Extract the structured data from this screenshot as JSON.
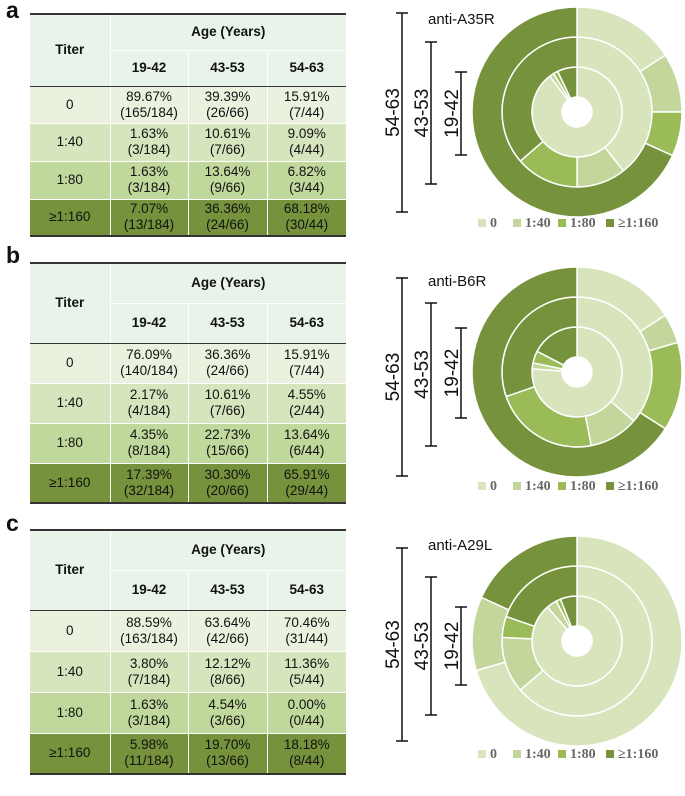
{
  "colors": {
    "c0": "#d8e4bc",
    "c1": "#c3d69b",
    "c2": "#9bbb59",
    "c3": "#76923c"
  },
  "panels": [
    {
      "letter": "a",
      "table": {
        "titer_header": "Titer",
        "age_header": "Age (Years)",
        "age_groups": [
          "19-42",
          "43-53",
          "54-63"
        ],
        "rows": [
          {
            "label": "0",
            "cells": [
              [
                "89.67%",
                "(165/184)"
              ],
              [
                "39.39%",
                "(26/66)"
              ],
              [
                "15.91%",
                "(7/44)"
              ]
            ]
          },
          {
            "label": "1:40",
            "cells": [
              [
                "1.63%",
                "(3/184)"
              ],
              [
                "10.61%",
                "(7/66)"
              ],
              [
                "9.09%",
                "(4/44)"
              ]
            ]
          },
          {
            "label": "1:80",
            "cells": [
              [
                "1.63%",
                "(3/184)"
              ],
              [
                "13.64%",
                "(9/66)"
              ],
              [
                "6.82%",
                "(3/44)"
              ]
            ]
          },
          {
            "label": "≥1:160",
            "cells": [
              [
                "7.07%",
                "(13/184)"
              ],
              [
                "36.36%",
                "(24/66)"
              ],
              [
                "68.18%",
                "(30/44)"
              ]
            ]
          }
        ]
      }
    },
    {
      "letter": "b",
      "table": {
        "titer_header": "Titer",
        "age_header": "Age (Years)",
        "age_groups": [
          "19-42",
          "43-53",
          "54-63"
        ],
        "rows": [
          {
            "label": "0",
            "cells": [
              [
                "76.09%",
                "(140/184)"
              ],
              [
                "36.36%",
                "(24/66)"
              ],
              [
                "15.91%",
                "(7/44)"
              ]
            ]
          },
          {
            "label": "1:40",
            "cells": [
              [
                "2.17%",
                "(4/184)"
              ],
              [
                "10.61%",
                "(7/66)"
              ],
              [
                "4.55%",
                "(2/44)"
              ]
            ]
          },
          {
            "label": "1:80",
            "cells": [
              [
                "4.35%",
                "(8/184)"
              ],
              [
                "22.73%",
                "(15/66)"
              ],
              [
                "13.64%",
                "(6/44)"
              ]
            ]
          },
          {
            "label": "≥1:160",
            "cells": [
              [
                "17.39%",
                "(32/184)"
              ],
              [
                "30.30%",
                "(20/66)"
              ],
              [
                "65.91%",
                "(29/44)"
              ]
            ]
          }
        ]
      }
    },
    {
      "letter": "c",
      "table": {
        "titer_header": "Titer",
        "age_header": "Age (Years)",
        "age_groups": [
          "19-42",
          "43-53",
          "54-63"
        ],
        "rows": [
          {
            "label": "0",
            "cells": [
              [
                "88.59%",
                "(163/184)"
              ],
              [
                "63.64%",
                "(42/66)"
              ],
              [
                "70.46%",
                "(31/44)"
              ]
            ]
          },
          {
            "label": "1:40",
            "cells": [
              [
                "3.80%",
                "(7/184)"
              ],
              [
                "12.12%",
                "(8/66)"
              ],
              [
                "11.36%",
                "(5/44)"
              ]
            ]
          },
          {
            "label": "1:80",
            "cells": [
              [
                "1.63%",
                "(3/184)"
              ],
              [
                "4.54%",
                "(3/66)"
              ],
              [
                "0.00%",
                "(0/44)"
              ]
            ]
          },
          {
            "label": "≥1:160",
            "cells": [
              [
                "5.98%",
                "(11/184)"
              ],
              [
                "19.70%",
                "(13/66)"
              ],
              [
                "18.18%",
                "(8/44)"
              ]
            ]
          }
        ]
      }
    }
  ],
  "chart_data": [
    {
      "type": "pie",
      "subtype": "multi-level donut",
      "title": "anti-A35R",
      "categories": [
        "0",
        "1:40",
        "1:80",
        "≥1:160"
      ],
      "legend": [
        "0",
        "1:40",
        "1:80",
        "≥1:160"
      ],
      "series": [
        {
          "name": "19-42",
          "values": [
            89.67,
            1.63,
            1.63,
            7.07
          ]
        },
        {
          "name": "43-53",
          "values": [
            39.39,
            10.61,
            13.64,
            36.36
          ]
        },
        {
          "name": "54-63",
          "values": [
            15.91,
            9.09,
            6.82,
            68.18
          ]
        }
      ]
    },
    {
      "type": "pie",
      "subtype": "multi-level donut",
      "title": "anti-B6R",
      "categories": [
        "0",
        "1:40",
        "1:80",
        "≥1:160"
      ],
      "legend": [
        "0",
        "1:40",
        "1:80",
        "≥1:160"
      ],
      "series": [
        {
          "name": "19-42",
          "values": [
            76.09,
            2.17,
            4.35,
            17.39
          ]
        },
        {
          "name": "43-53",
          "values": [
            36.36,
            10.61,
            22.73,
            30.3
          ]
        },
        {
          "name": "54-63",
          "values": [
            15.91,
            4.55,
            13.64,
            65.91
          ]
        }
      ]
    },
    {
      "type": "pie",
      "subtype": "multi-level donut",
      "title": "anti-A29L",
      "categories": [
        "0",
        "1:40",
        "1:80",
        "≥1:160"
      ],
      "legend": [
        "0",
        "1:40",
        "1:80",
        "≥1:160"
      ],
      "series": [
        {
          "name": "19-42",
          "values": [
            88.59,
            3.8,
            1.63,
            5.98
          ]
        },
        {
          "name": "43-53",
          "values": [
            63.64,
            12.12,
            4.54,
            19.7
          ]
        },
        {
          "name": "54-63",
          "values": [
            70.46,
            11.36,
            0.0,
            18.18
          ]
        }
      ]
    }
  ]
}
